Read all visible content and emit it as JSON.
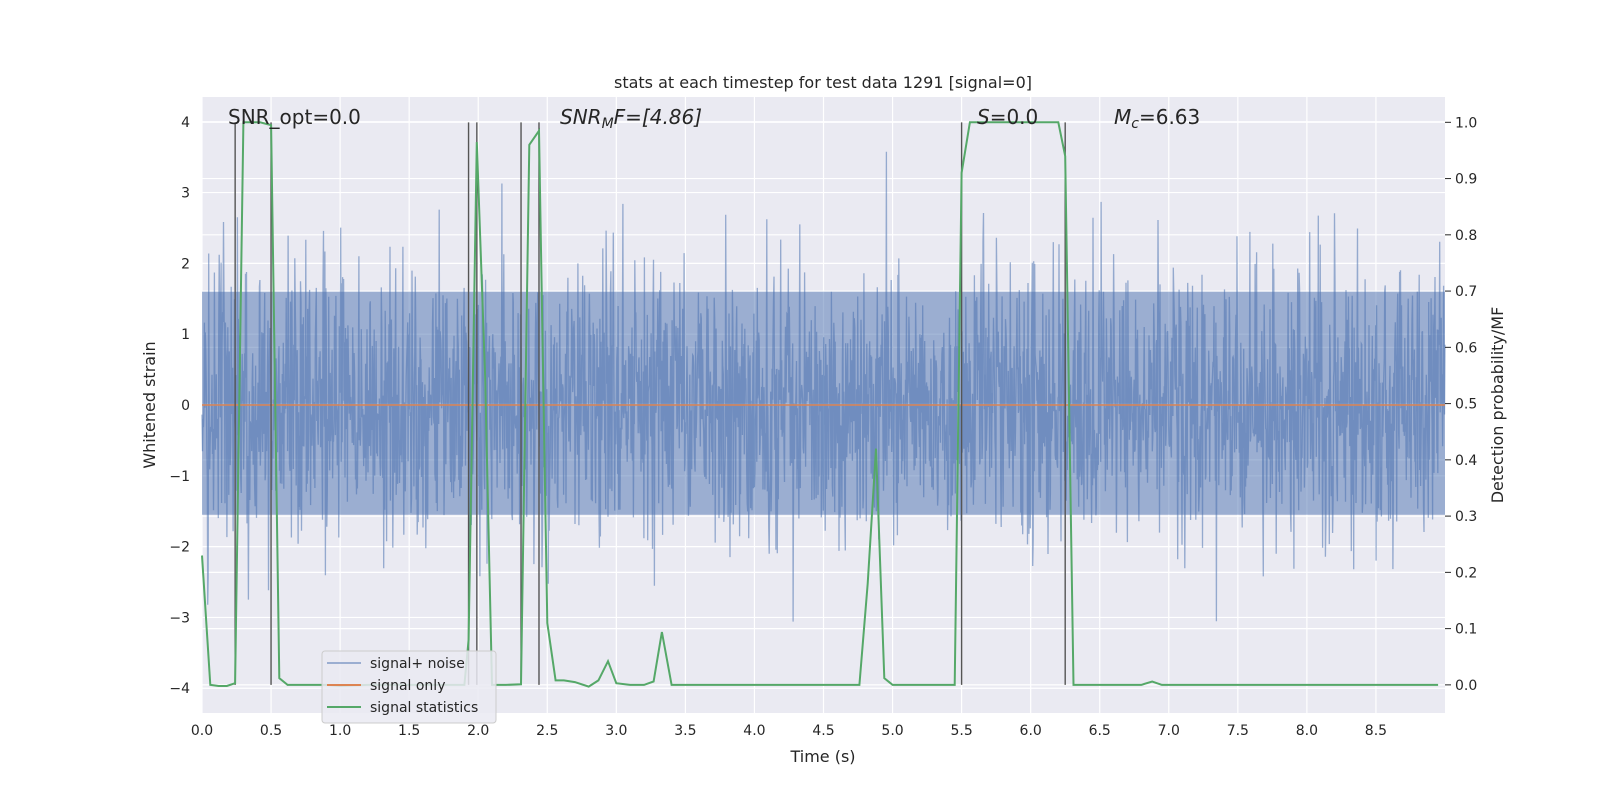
{
  "chart_data": {
    "type": "line",
    "title": "stats at each timestep for test data 1291 [signal=0]",
    "xlabel": "Time (s)",
    "ylabel_left": "Whitened strain",
    "ylabel_right": "Detection probability/MF",
    "xlim": [
      0,
      9.0
    ],
    "ylim_left": [
      -4.35,
      4.35
    ],
    "ylim_right": [
      -0.05,
      1.045
    ],
    "x_ticks": [
      0.0,
      0.5,
      1.0,
      1.5,
      2.0,
      2.5,
      3.0,
      3.5,
      4.0,
      4.5,
      5.0,
      5.5,
      6.0,
      6.5,
      7.0,
      7.5,
      8.0,
      8.5
    ],
    "x_tick_labels": [
      "0.0",
      "0.5",
      "1.0",
      "1.5",
      "2.0",
      "2.5",
      "3.0",
      "3.5",
      "4.0",
      "4.5",
      "5.0",
      "5.5",
      "6.0",
      "6.5",
      "7.0",
      "7.5",
      "8.0",
      "8.5"
    ],
    "y_ticks_left": [
      4,
      3,
      2,
      1,
      0,
      -1,
      -2,
      -3,
      -4
    ],
    "y_tick_labels_left": [
      "4",
      "3",
      "2",
      "1",
      "0",
      "−1",
      "−2",
      "−3",
      "−4"
    ],
    "y_ticks_right": [
      1.0,
      0.9,
      0.8,
      0.7,
      0.6,
      0.5,
      0.4,
      0.3,
      0.2,
      0.1,
      0.0
    ],
    "y_tick_labels_right": [
      "1.0",
      "0.9",
      "0.8",
      "0.7",
      "0.6",
      "0.5",
      "0.4",
      "0.3",
      "0.2",
      "0.1",
      "0.0"
    ],
    "grid": true,
    "legend_position": "lower-left",
    "annotations": {
      "snr_opt": "SNR_opt=0.0",
      "snr_mf_main": "SNR",
      "snr_mf_sub": "M",
      "snr_mf_rest": "F=[4.86]",
      "s_label_main": "S",
      "s_label_rest": "=0.0",
      "mc_main": "M",
      "mc_sub": "c",
      "mc_rest": "=6.63"
    },
    "vertical_lines_x": [
      0.24,
      0.5,
      1.93,
      1.99,
      2.31,
      2.44,
      5.5,
      6.25
    ],
    "series": [
      {
        "name": "signal+ noise",
        "color": "#4c72b0",
        "axis": "left",
        "kind": "dense-noise",
        "envelope_p95": 1.6,
        "envelope_p50": 0.8,
        "dense_band": [
          -1.55,
          1.6
        ],
        "x_range": [
          0,
          9.0
        ]
      },
      {
        "name": "signal only",
        "color": "#dd8452",
        "axis": "left",
        "x": [
          0,
          9.0
        ],
        "y": [
          0,
          0
        ]
      },
      {
        "name": "signal statistics",
        "color": "#55a868",
        "axis": "right",
        "x": [
          0.0,
          0.06,
          0.12,
          0.18,
          0.24,
          0.3,
          0.36,
          0.42,
          0.5,
          0.56,
          0.62,
          0.7,
          0.8,
          0.9,
          1.0,
          1.2,
          1.4,
          1.6,
          1.8,
          1.9,
          1.93,
          1.99,
          2.05,
          2.1,
          2.2,
          2.31,
          2.37,
          2.44,
          2.5,
          2.56,
          2.62,
          2.7,
          2.8,
          2.87,
          2.94,
          3.0,
          3.1,
          3.2,
          3.27,
          3.33,
          3.4,
          3.6,
          3.8,
          4.0,
          4.2,
          4.4,
          4.6,
          4.7,
          4.76,
          4.82,
          4.88,
          4.94,
          5.0,
          5.1,
          5.3,
          5.45,
          5.5,
          5.56,
          5.7,
          5.9,
          6.1,
          6.2,
          6.25,
          6.31,
          6.4,
          6.6,
          6.8,
          6.88,
          6.95,
          7.2,
          7.5,
          7.8,
          8.1,
          8.4,
          8.7,
          8.95
        ],
        "y": [
          0.23,
          0.0,
          -0.002,
          -0.002,
          0.003,
          1.0,
          1.0,
          1.0,
          0.995,
          0.012,
          0.0,
          0.0,
          0.0,
          0.0,
          -0.002,
          0.0,
          0.0,
          0.0,
          0.0,
          0.0,
          0.08,
          0.965,
          0.55,
          0.0,
          0.0,
          0.001,
          0.96,
          0.985,
          0.11,
          0.008,
          0.008,
          0.005,
          -0.003,
          0.008,
          0.042,
          0.003,
          0.0,
          0.0,
          0.006,
          0.094,
          0.0,
          0.0,
          0.0,
          0.0,
          0.0,
          0.0,
          0.0,
          0.0,
          0.0,
          0.18,
          0.42,
          0.012,
          0.0,
          0.0,
          0.0,
          0.0,
          0.91,
          1.0,
          1.0,
          1.0,
          1.0,
          1.0,
          0.94,
          0.0,
          0.0,
          0.0,
          0.0,
          0.006,
          0.0,
          0.0,
          0.0,
          0.0,
          0.0,
          0.0,
          0.0,
          0.0
        ]
      }
    ]
  }
}
